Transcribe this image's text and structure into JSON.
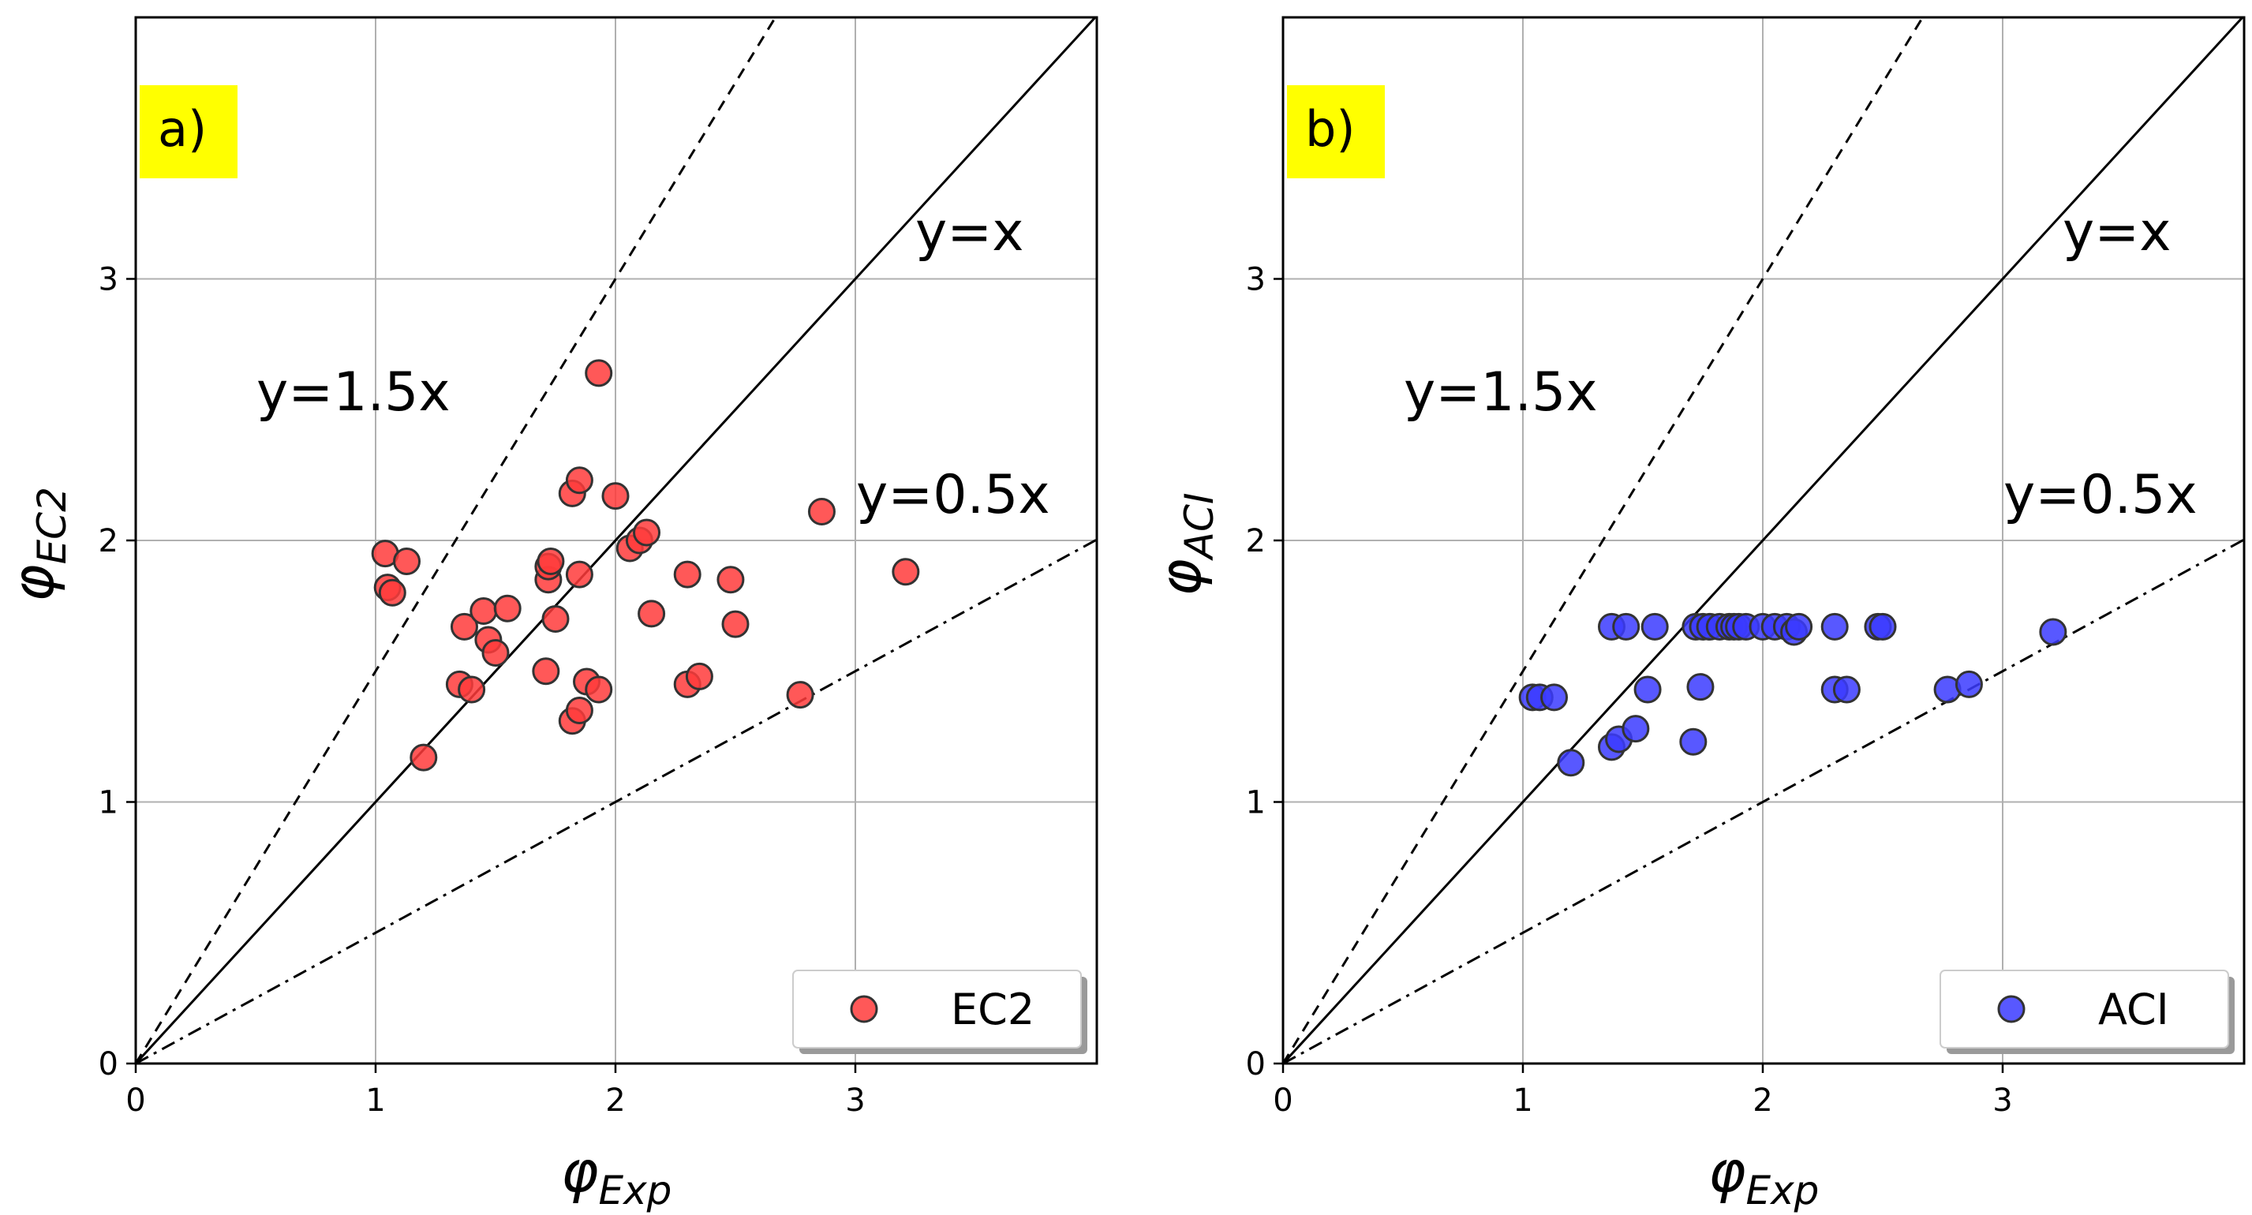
{
  "chart_data": [
    {
      "type": "scatter",
      "panel_label": "a)",
      "xlabel": {
        "symbol": "φ",
        "subscript": "Exp"
      },
      "ylabel": {
        "symbol": "φ",
        "subscript": "EC2"
      },
      "xlim": [
        0,
        4
      ],
      "ylim": [
        0,
        3.9
      ],
      "xticks": [
        "0",
        "1",
        "2",
        "3"
      ],
      "yticks": [
        "0",
        "1",
        "2",
        "3"
      ],
      "grid": true,
      "legend_position": "lower-right",
      "reference_lines": [
        {
          "label": "y=1.5x",
          "slope": 1.5,
          "style": "dashed"
        },
        {
          "label": "y=x",
          "slope": 1.0,
          "style": "solid"
        },
        {
          "label": "y=0.5x",
          "slope": 0.5,
          "style": "dashdot"
        }
      ],
      "series": [
        {
          "name": "EC2",
          "color": "#ff3b3b",
          "edge_color": "#333333",
          "points": [
            [
              1.04,
              1.95
            ],
            [
              1.13,
              1.92
            ],
            [
              1.05,
              1.82
            ],
            [
              1.07,
              1.8
            ],
            [
              1.2,
              1.17
            ],
            [
              1.35,
              1.45
            ],
            [
              1.4,
              1.43
            ],
            [
              1.37,
              1.67
            ],
            [
              1.45,
              1.73
            ],
            [
              1.47,
              1.62
            ],
            [
              1.5,
              1.57
            ],
            [
              1.55,
              1.74
            ],
            [
              1.71,
              1.5
            ],
            [
              1.72,
              1.85
            ],
            [
              1.72,
              1.9
            ],
            [
              1.73,
              1.92
            ],
            [
              1.75,
              1.7
            ],
            [
              1.82,
              2.18
            ],
            [
              1.85,
              2.23
            ],
            [
              1.85,
              1.87
            ],
            [
              1.82,
              1.31
            ],
            [
              1.85,
              1.35
            ],
            [
              1.88,
              1.46
            ],
            [
              1.93,
              1.43
            ],
            [
              1.93,
              2.64
            ],
            [
              2.0,
              2.17
            ],
            [
              2.06,
              1.97
            ],
            [
              2.1,
              2.0
            ],
            [
              2.13,
              2.03
            ],
            [
              2.15,
              1.72
            ],
            [
              2.3,
              1.45
            ],
            [
              2.3,
              1.87
            ],
            [
              2.35,
              1.48
            ],
            [
              2.48,
              1.85
            ],
            [
              2.5,
              1.68
            ],
            [
              2.77,
              1.41
            ],
            [
              2.86,
              2.11
            ],
            [
              3.21,
              1.88
            ]
          ]
        }
      ]
    },
    {
      "type": "scatter",
      "panel_label": "b)",
      "xlabel": {
        "symbol": "φ",
        "subscript": "Exp"
      },
      "ylabel": {
        "symbol": "φ",
        "subscript": "ACI"
      },
      "xlim": [
        0,
        4
      ],
      "ylim": [
        0,
        3.9
      ],
      "xticks": [
        "0",
        "1",
        "2",
        "3"
      ],
      "yticks": [
        "0",
        "1",
        "2",
        "3"
      ],
      "grid": true,
      "legend_position": "lower-right",
      "reference_lines": [
        {
          "label": "y=1.5x",
          "slope": 1.5,
          "style": "dashed"
        },
        {
          "label": "y=x",
          "slope": 1.0,
          "style": "solid"
        },
        {
          "label": "y=0.5x",
          "slope": 0.5,
          "style": "dashdot"
        }
      ],
      "series": [
        {
          "name": "ACI",
          "color": "#3b3bff",
          "edge_color": "#333333",
          "points": [
            [
              1.04,
              1.4
            ],
            [
              1.07,
              1.4
            ],
            [
              1.13,
              1.4
            ],
            [
              1.2,
              1.15
            ],
            [
              1.37,
              1.21
            ],
            [
              1.4,
              1.24
            ],
            [
              1.47,
              1.28
            ],
            [
              1.52,
              1.43
            ],
            [
              1.37,
              1.67
            ],
            [
              1.43,
              1.67
            ],
            [
              1.55,
              1.67
            ],
            [
              1.71,
              1.23
            ],
            [
              1.74,
              1.44
            ],
            [
              1.72,
              1.67
            ],
            [
              1.75,
              1.67
            ],
            [
              1.78,
              1.67
            ],
            [
              1.82,
              1.67
            ],
            [
              1.86,
              1.67
            ],
            [
              1.88,
              1.67
            ],
            [
              1.9,
              1.67
            ],
            [
              1.93,
              1.67
            ],
            [
              2.0,
              1.67
            ],
            [
              2.05,
              1.67
            ],
            [
              2.1,
              1.67
            ],
            [
              2.13,
              1.65
            ],
            [
              2.15,
              1.67
            ],
            [
              2.3,
              1.67
            ],
            [
              2.3,
              1.43
            ],
            [
              2.35,
              1.43
            ],
            [
              2.48,
              1.67
            ],
            [
              2.5,
              1.67
            ],
            [
              2.77,
              1.43
            ],
            [
              2.86,
              1.45
            ],
            [
              3.21,
              1.65
            ]
          ]
        }
      ]
    }
  ]
}
